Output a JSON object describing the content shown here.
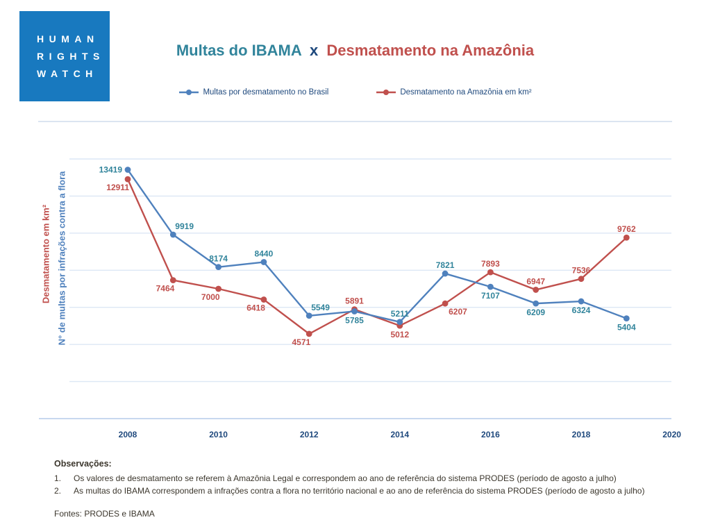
{
  "logo": {
    "lines": [
      "HUMAN",
      "RIGHTS",
      "WATCH"
    ]
  },
  "header": {
    "title_left": "Multas do IBAMA",
    "title_sep": "x",
    "title_right": "Desmatamento na Amazônia"
  },
  "colors": {
    "logo_blue": "#1879bf",
    "title_teal": "#31849b",
    "title_navy": "#1f497d",
    "title_red": "#c0504d",
    "line_blue": "#4f81bd",
    "line_red": "#c0504d",
    "label_teal": "#31849b",
    "grid": "#dce7f5",
    "axis": "#c7d8ef",
    "tick_navy": "#1f497d",
    "notes_text": "#3b362c"
  },
  "chart_data": {
    "type": "line",
    "x": [
      2008,
      2009,
      2010,
      2011,
      2012,
      2013,
      2014,
      2015,
      2016,
      2017,
      2018,
      2019
    ],
    "series": [
      {
        "name": "Multas por desmatamento no Brasil",
        "color": "#4f81bd",
        "label_color": "#31849b",
        "values": [
          13419,
          9919,
          8174,
          8440,
          5549,
          5785,
          5211,
          7821,
          7107,
          6209,
          6324,
          5404
        ],
        "label_pos": [
          "left",
          "above-right",
          "above",
          "above",
          "above-right",
          "below",
          "above",
          "above",
          "below",
          "below",
          "below",
          "below"
        ]
      },
      {
        "name": "Desmatamento na Amazônia em km²",
        "color": "#c0504d",
        "label_color": "#c0504d",
        "values": [
          12911,
          7464,
          7000,
          6418,
          4571,
          5891,
          5012,
          6207,
          7893,
          6947,
          7536,
          9762
        ],
        "label_pos": [
          "below-left",
          "below-left",
          "below-left",
          "below-left",
          "below-left",
          "above",
          "below",
          "below-right",
          "above",
          "above",
          "above",
          "above"
        ]
      }
    ],
    "xticks": [
      2008,
      2010,
      2012,
      2014,
      2016,
      2018,
      2020
    ],
    "ylim": [
      0,
      14000
    ],
    "grid_step": 2000,
    "grid": "on",
    "legend_position": "top-center",
    "ylabel_left": "Desmatamento em km²",
    "ylabel_right": "N° de multas por infrações contra a flora"
  },
  "notes": {
    "heading": "Observações:",
    "items": [
      {
        "num": "1.",
        "text": "Os valores de desmatamento se referem à Amazônia Legal e correspondem ao ano de referência do sistema PRODES (período de agosto a julho)"
      },
      {
        "num": "2.",
        "text": "As multas do IBAMA correspondem a infrações contra a flora no território nacional e ao ano de referência do sistema PRODES (período de agosto a julho)"
      }
    ],
    "sources": "Fontes: PRODES e IBAMA"
  }
}
